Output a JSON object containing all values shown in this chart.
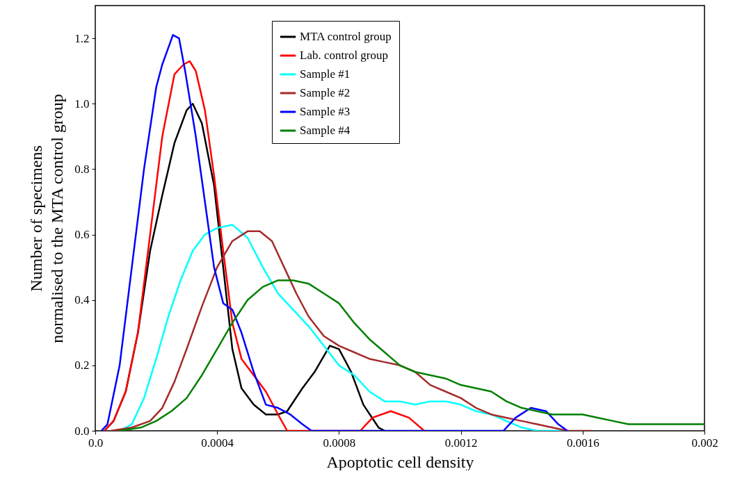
{
  "chart_data": {
    "type": "line",
    "xlabel": "Apoptotic cell density",
    "ylabel": "Number of specimens\nnormalised to the MTA control group",
    "xlim": [
      0,
      0.002
    ],
    "ylim": [
      0,
      1.3
    ],
    "xticks": [
      {
        "value": 0,
        "label": "0.0"
      },
      0.0004,
      0.0008,
      0.0012,
      0.0016,
      0.002
    ],
    "yticks": [
      {
        "value": 0,
        "label": "0.0"
      },
      {
        "value": 0.2,
        "label": "0.2"
      },
      {
        "value": 0.4,
        "label": "0.4"
      },
      {
        "value": 0.6,
        "label": "0.6"
      },
      {
        "value": 0.8,
        "label": "0.8"
      },
      {
        "value": 1,
        "label": "1.0"
      },
      {
        "value": 1.2,
        "label": "1.2"
      }
    ],
    "grid": false,
    "legend": "top",
    "line_style": "solid",
    "marker": "none",
    "series": [
      {
        "name": "MTA control group",
        "color": "#000000",
        "x": [
          3e-05,
          6e-05,
          0.0001,
          0.00014,
          0.00018,
          0.00022,
          0.00026,
          0.0003,
          0.00032,
          0.00035,
          0.00039,
          0.00042,
          0.00045,
          0.00048,
          0.00052,
          0.00056,
          0.0006,
          0.00063,
          0.00068,
          0.00072,
          0.00077,
          0.0008,
          0.00084,
          0.00088,
          0.00093,
          0.00095
        ],
        "values": [
          0,
          0.03,
          0.12,
          0.3,
          0.55,
          0.72,
          0.88,
          0.98,
          1.0,
          0.94,
          0.75,
          0.5,
          0.25,
          0.13,
          0.08,
          0.05,
          0.05,
          0.06,
          0.13,
          0.18,
          0.26,
          0.25,
          0.18,
          0.08,
          0.01,
          0
        ]
      },
      {
        "name": "Lab. control group",
        "color": "#ff0000",
        "x": [
          3e-05,
          6e-05,
          0.0001,
          0.00014,
          0.00018,
          0.00022,
          0.00026,
          0.00029,
          0.00031,
          0.00033,
          0.00036,
          0.00039,
          0.00042,
          0.00045,
          0.00048,
          0.00052,
          0.00056,
          0.0006,
          0.00063,
          0.00087,
          0.00091,
          0.00097,
          0.00103,
          0.00108
        ],
        "values": [
          0,
          0.03,
          0.12,
          0.3,
          0.6,
          0.9,
          1.09,
          1.12,
          1.13,
          1.1,
          0.98,
          0.78,
          0.55,
          0.33,
          0.22,
          0.17,
          0.12,
          0.05,
          0,
          0,
          0.04,
          0.06,
          0.04,
          0
        ]
      },
      {
        "name": "Sample #1",
        "color": "#00ffff",
        "x": [
          8e-05,
          0.00012,
          0.00016,
          0.0002,
          0.00024,
          0.00028,
          0.00032,
          0.00036,
          0.0004,
          0.00045,
          0.0005,
          0.00055,
          0.0006,
          0.00065,
          0.0007,
          0.00075,
          0.0008,
          0.00085,
          0.0009,
          0.00095,
          0.001,
          0.00105,
          0.0011,
          0.00115,
          0.0012,
          0.00125,
          0.0013,
          0.00135,
          0.0014,
          0.00145,
          0.00154
        ],
        "values": [
          0,
          0.02,
          0.1,
          0.22,
          0.35,
          0.46,
          0.55,
          0.6,
          0.62,
          0.63,
          0.59,
          0.5,
          0.42,
          0.37,
          0.32,
          0.26,
          0.2,
          0.17,
          0.12,
          0.09,
          0.09,
          0.08,
          0.09,
          0.09,
          0.08,
          0.06,
          0.05,
          0.03,
          0.01,
          0,
          0
        ]
      },
      {
        "name": "Sample #2",
        "color": "#a52a2a",
        "x": [
          5e-05,
          0.00012,
          0.00018,
          0.00022,
          0.00026,
          0.0003,
          0.00035,
          0.0004,
          0.00045,
          0.0005,
          0.00054,
          0.00058,
          0.00062,
          0.00066,
          0.0007,
          0.00075,
          0.0008,
          0.00085,
          0.0009,
          0.00095,
          0.001,
          0.00105,
          0.0011,
          0.00115,
          0.0012,
          0.00125,
          0.0013,
          0.00135,
          0.0014,
          0.00145,
          0.0015,
          0.00155,
          0.00163
        ],
        "values": [
          0,
          0.01,
          0.03,
          0.07,
          0.15,
          0.25,
          0.38,
          0.5,
          0.58,
          0.61,
          0.61,
          0.58,
          0.5,
          0.42,
          0.35,
          0.29,
          0.26,
          0.24,
          0.22,
          0.21,
          0.2,
          0.18,
          0.14,
          0.12,
          0.1,
          0.07,
          0.05,
          0.04,
          0.03,
          0.02,
          0.01,
          0,
          0
        ]
      },
      {
        "name": "Sample #3",
        "color": "#0000ff",
        "x": [
          2e-05,
          4e-05,
          8e-05,
          0.00012,
          0.00016,
          0.0002,
          0.00022,
          0.000255,
          0.000275,
          0.000295,
          0.00033,
          0.00036,
          0.00039,
          0.00042,
          0.00045,
          0.00048,
          0.00052,
          0.00056,
          0.0006,
          0.00064,
          0.00068,
          0.00071,
          0.00134,
          0.00138,
          0.00143,
          0.00148,
          0.00152,
          0.00155
        ],
        "values": [
          0,
          0.02,
          0.2,
          0.5,
          0.8,
          1.05,
          1.12,
          1.21,
          1.2,
          1.1,
          0.9,
          0.7,
          0.5,
          0.39,
          0.37,
          0.3,
          0.18,
          0.08,
          0.07,
          0.05,
          0.02,
          0,
          0,
          0.04,
          0.07,
          0.06,
          0.02,
          0
        ]
      },
      {
        "name": "Sample #4",
        "color": "#008000",
        "x": [
          8e-05,
          0.00015,
          0.0002,
          0.00025,
          0.0003,
          0.00035,
          0.0004,
          0.00045,
          0.0005,
          0.00055,
          0.0006,
          0.00065,
          0.0007,
          0.00075,
          0.0008,
          0.00085,
          0.0009,
          0.00095,
          0.001,
          0.00105,
          0.0011,
          0.00115,
          0.0012,
          0.00125,
          0.0013,
          0.00135,
          0.0014,
          0.00145,
          0.0015,
          0.00155,
          0.0016,
          0.00165,
          0.0017,
          0.00175,
          0.0018,
          0.00185,
          0.0019,
          0.00195,
          0.002
        ],
        "values": [
          0,
          0.01,
          0.03,
          0.06,
          0.1,
          0.17,
          0.25,
          0.33,
          0.4,
          0.44,
          0.46,
          0.46,
          0.45,
          0.42,
          0.39,
          0.33,
          0.28,
          0.24,
          0.2,
          0.18,
          0.17,
          0.16,
          0.14,
          0.13,
          0.12,
          0.09,
          0.07,
          0.06,
          0.05,
          0.05,
          0.05,
          0.04,
          0.03,
          0.02,
          0.02,
          0.02,
          0.02,
          0.02,
          0.02
        ]
      }
    ]
  }
}
